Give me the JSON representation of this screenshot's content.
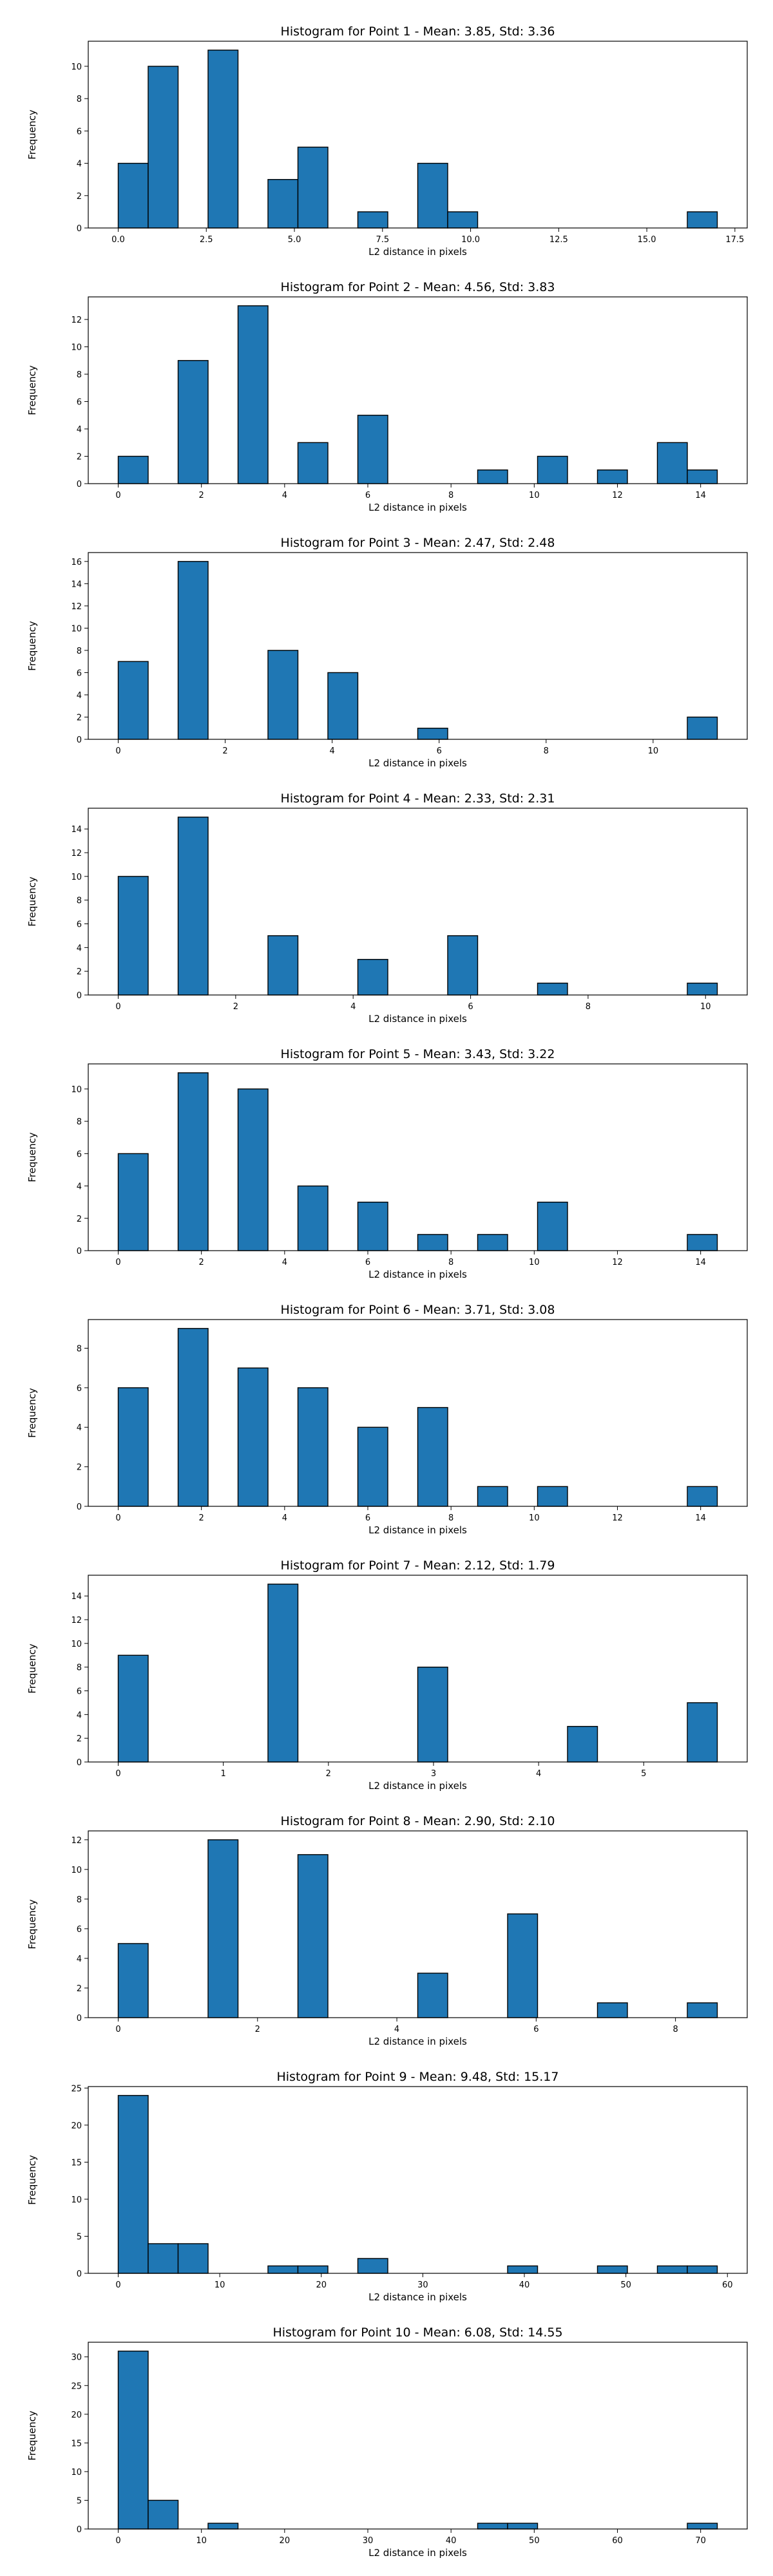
{
  "figure": {
    "bar_color": "#1f77b4",
    "edge_color": "#000000",
    "background": "#ffffff"
  },
  "chart_data": [
    {
      "type": "bar",
      "title": "Histogram for Point 1 - Mean: 3.85, Std: 3.36",
      "xlabel": "L2 distance in pixels",
      "ylabel": "Frequency",
      "xlim": [
        -0.85,
        17.85
      ],
      "ylim": [
        0,
        11.55
      ],
      "xticks": [
        0.0,
        2.5,
        5.0,
        7.5,
        10.0,
        12.5,
        15.0,
        17.5
      ],
      "xtick_labels": [
        "0.0",
        "2.5",
        "5.0",
        "7.5",
        "10.0",
        "12.5",
        "15.0",
        "17.5"
      ],
      "yticks": [
        0,
        2,
        4,
        6,
        8,
        10
      ],
      "bins": [
        {
          "x0": 0.0,
          "x1": 0.85,
          "count": 4
        },
        {
          "x0": 0.85,
          "x1": 1.7,
          "count": 10
        },
        {
          "x0": 2.55,
          "x1": 3.4,
          "count": 11
        },
        {
          "x0": 4.25,
          "x1": 5.1,
          "count": 3
        },
        {
          "x0": 5.1,
          "x1": 5.95,
          "count": 5
        },
        {
          "x0": 6.8,
          "x1": 7.65,
          "count": 1
        },
        {
          "x0": 8.5,
          "x1": 9.35,
          "count": 4
        },
        {
          "x0": 9.35,
          "x1": 10.2,
          "count": 1
        },
        {
          "x0": 16.15,
          "x1": 17.0,
          "count": 1
        }
      ]
    },
    {
      "type": "bar",
      "title": "Histogram for Point 2 - Mean: 4.56, Std: 3.83",
      "xlabel": "L2 distance in pixels",
      "ylabel": "Frequency",
      "xlim": [
        -0.72,
        15.12
      ],
      "ylim": [
        0,
        13.65
      ],
      "xticks": [
        0,
        2,
        4,
        6,
        8,
        10,
        12,
        14
      ],
      "xtick_labels": [
        "0",
        "2",
        "4",
        "6",
        "8",
        "10",
        "12",
        "14"
      ],
      "yticks": [
        0,
        2,
        4,
        6,
        8,
        10,
        12
      ],
      "bins": [
        {
          "x0": 0.0,
          "x1": 0.72,
          "count": 2
        },
        {
          "x0": 1.44,
          "x1": 2.16,
          "count": 9
        },
        {
          "x0": 2.88,
          "x1": 3.6,
          "count": 13
        },
        {
          "x0": 4.32,
          "x1": 5.04,
          "count": 3
        },
        {
          "x0": 5.76,
          "x1": 6.48,
          "count": 5
        },
        {
          "x0": 8.64,
          "x1": 9.36,
          "count": 1
        },
        {
          "x0": 10.08,
          "x1": 10.8,
          "count": 2
        },
        {
          "x0": 11.52,
          "x1": 12.24,
          "count": 1
        },
        {
          "x0": 12.96,
          "x1": 13.68,
          "count": 3
        },
        {
          "x0": 13.68,
          "x1": 14.4,
          "count": 1
        }
      ]
    },
    {
      "type": "bar",
      "title": "Histogram for Point 3 - Mean: 2.47, Std: 2.48",
      "xlabel": "L2 distance in pixels",
      "ylabel": "Frequency",
      "xlim": [
        -0.56,
        11.76
      ],
      "ylim": [
        0,
        16.8
      ],
      "xticks": [
        0,
        2,
        4,
        6,
        8,
        10
      ],
      "xtick_labels": [
        "0",
        "2",
        "4",
        "6",
        "8",
        "10"
      ],
      "yticks": [
        0,
        2,
        4,
        6,
        8,
        10,
        12,
        14,
        16
      ],
      "bins": [
        {
          "x0": 0.0,
          "x1": 0.56,
          "count": 7
        },
        {
          "x0": 1.12,
          "x1": 1.68,
          "count": 16
        },
        {
          "x0": 2.8,
          "x1": 3.36,
          "count": 8
        },
        {
          "x0": 3.92,
          "x1": 4.48,
          "count": 6
        },
        {
          "x0": 5.6,
          "x1": 6.16,
          "count": 1
        },
        {
          "x0": 10.64,
          "x1": 11.2,
          "count": 2
        }
      ]
    },
    {
      "type": "bar",
      "title": "Histogram for Point 4 - Mean: 2.33, Std: 2.31",
      "xlabel": "L2 distance in pixels",
      "ylabel": "Frequency",
      "xlim": [
        -0.51,
        10.71
      ],
      "ylim": [
        0,
        15.75
      ],
      "xticks": [
        0,
        2,
        4,
        6,
        8,
        10
      ],
      "xtick_labels": [
        "0",
        "2",
        "4",
        "6",
        "8",
        "10"
      ],
      "yticks": [
        0,
        2,
        4,
        6,
        8,
        10,
        12,
        14
      ],
      "bins": [
        {
          "x0": 0.0,
          "x1": 0.51,
          "count": 10
        },
        {
          "x0": 1.02,
          "x1": 1.53,
          "count": 15
        },
        {
          "x0": 2.55,
          "x1": 3.06,
          "count": 5
        },
        {
          "x0": 4.08,
          "x1": 4.59,
          "count": 3
        },
        {
          "x0": 5.61,
          "x1": 6.12,
          "count": 5
        },
        {
          "x0": 7.14,
          "x1": 7.65,
          "count": 1
        },
        {
          "x0": 9.69,
          "x1": 10.2,
          "count": 1
        }
      ]
    },
    {
      "type": "bar",
      "title": "Histogram for Point 5 - Mean: 3.43, Std: 3.22",
      "xlabel": "L2 distance in pixels",
      "ylabel": "Frequency",
      "xlim": [
        -0.72,
        15.12
      ],
      "ylim": [
        0,
        11.55
      ],
      "xticks": [
        0,
        2,
        4,
        6,
        8,
        10,
        12,
        14
      ],
      "xtick_labels": [
        "0",
        "2",
        "4",
        "6",
        "8",
        "10",
        "12",
        "14"
      ],
      "yticks": [
        0,
        2,
        4,
        6,
        8,
        10
      ],
      "bins": [
        {
          "x0": 0.0,
          "x1": 0.72,
          "count": 6
        },
        {
          "x0": 1.44,
          "x1": 2.16,
          "count": 11
        },
        {
          "x0": 2.88,
          "x1": 3.6,
          "count": 10
        },
        {
          "x0": 4.32,
          "x1": 5.04,
          "count": 4
        },
        {
          "x0": 5.76,
          "x1": 6.48,
          "count": 3
        },
        {
          "x0": 7.2,
          "x1": 7.92,
          "count": 1
        },
        {
          "x0": 8.64,
          "x1": 9.36,
          "count": 1
        },
        {
          "x0": 10.08,
          "x1": 10.8,
          "count": 3
        },
        {
          "x0": 13.68,
          "x1": 14.4,
          "count": 1
        }
      ]
    },
    {
      "type": "bar",
      "title": "Histogram for Point 6 - Mean: 3.71, Std: 3.08",
      "xlabel": "L2 distance in pixels",
      "ylabel": "Frequency",
      "xlim": [
        -0.72,
        15.12
      ],
      "ylim": [
        0,
        9.45
      ],
      "xticks": [
        0,
        2,
        4,
        6,
        8,
        10,
        12,
        14
      ],
      "xtick_labels": [
        "0",
        "2",
        "4",
        "6",
        "8",
        "10",
        "12",
        "14"
      ],
      "yticks": [
        0,
        2,
        4,
        6,
        8
      ],
      "bins": [
        {
          "x0": 0.0,
          "x1": 0.72,
          "count": 6
        },
        {
          "x0": 1.44,
          "x1": 2.16,
          "count": 9
        },
        {
          "x0": 2.88,
          "x1": 3.6,
          "count": 7
        },
        {
          "x0": 4.32,
          "x1": 5.04,
          "count": 6
        },
        {
          "x0": 5.76,
          "x1": 6.48,
          "count": 4
        },
        {
          "x0": 7.2,
          "x1": 7.92,
          "count": 5
        },
        {
          "x0": 8.64,
          "x1": 9.36,
          "count": 1
        },
        {
          "x0": 10.08,
          "x1": 10.8,
          "count": 1
        },
        {
          "x0": 13.68,
          "x1": 14.4,
          "count": 1
        }
      ]
    },
    {
      "type": "bar",
      "title": "Histogram for Point 7 - Mean: 2.12, Std: 1.79",
      "xlabel": "L2 distance in pixels",
      "ylabel": "Frequency",
      "xlim": [
        -0.285,
        5.985
      ],
      "ylim": [
        0,
        15.75
      ],
      "xticks": [
        0,
        1,
        2,
        3,
        4,
        5
      ],
      "xtick_labels": [
        "0",
        "1",
        "2",
        "3",
        "4",
        "5"
      ],
      "yticks": [
        0,
        2,
        4,
        6,
        8,
        10,
        12,
        14
      ],
      "bins": [
        {
          "x0": 0.0,
          "x1": 0.285,
          "count": 9
        },
        {
          "x0": 1.425,
          "x1": 1.71,
          "count": 15
        },
        {
          "x0": 2.85,
          "x1": 3.135,
          "count": 8
        },
        {
          "x0": 4.275,
          "x1": 4.56,
          "count": 3
        },
        {
          "x0": 5.415,
          "x1": 5.7,
          "count": 5
        }
      ]
    },
    {
      "type": "bar",
      "title": "Histogram for Point 8 - Mean: 2.90, Std: 2.10",
      "xlabel": "L2 distance in pixels",
      "ylabel": "Frequency",
      "xlim": [
        -0.43,
        9.03
      ],
      "ylim": [
        0,
        12.6
      ],
      "xticks": [
        0,
        2,
        4,
        6,
        8
      ],
      "xtick_labels": [
        "0",
        "2",
        "4",
        "6",
        "8"
      ],
      "yticks": [
        0,
        2,
        4,
        6,
        8,
        10,
        12
      ],
      "bins": [
        {
          "x0": 0.0,
          "x1": 0.43,
          "count": 5
        },
        {
          "x0": 1.29,
          "x1": 1.72,
          "count": 12
        },
        {
          "x0": 2.58,
          "x1": 3.01,
          "count": 11
        },
        {
          "x0": 4.3,
          "x1": 4.73,
          "count": 3
        },
        {
          "x0": 5.59,
          "x1": 6.02,
          "count": 7
        },
        {
          "x0": 6.88,
          "x1": 7.31,
          "count": 1
        },
        {
          "x0": 8.17,
          "x1": 8.6,
          "count": 1
        }
      ]
    },
    {
      "type": "bar",
      "title": "Histogram for Point 9 - Mean: 9.48, Std: 15.17",
      "xlabel": "L2 distance in pixels",
      "ylabel": "Frequency",
      "xlim": [
        -2.95,
        61.95
      ],
      "ylim": [
        0,
        25.2
      ],
      "xticks": [
        0,
        10,
        20,
        30,
        40,
        50,
        60
      ],
      "xtick_labels": [
        "0",
        "10",
        "20",
        "30",
        "40",
        "50",
        "60"
      ],
      "yticks": [
        0,
        5,
        10,
        15,
        20,
        25
      ],
      "bins": [
        {
          "x0": 0.0,
          "x1": 2.95,
          "count": 24
        },
        {
          "x0": 2.95,
          "x1": 5.9,
          "count": 4
        },
        {
          "x0": 5.9,
          "x1": 8.85,
          "count": 4
        },
        {
          "x0": 14.75,
          "x1": 17.7,
          "count": 1
        },
        {
          "x0": 17.7,
          "x1": 20.65,
          "count": 1
        },
        {
          "x0": 23.6,
          "x1": 26.55,
          "count": 2
        },
        {
          "x0": 38.35,
          "x1": 41.3,
          "count": 1
        },
        {
          "x0": 47.2,
          "x1": 50.15,
          "count": 1
        },
        {
          "x0": 53.1,
          "x1": 56.05,
          "count": 1
        },
        {
          "x0": 56.05,
          "x1": 59.0,
          "count": 1
        }
      ]
    },
    {
      "type": "bar",
      "title": "Histogram for Point 10 - Mean: 6.08, Std: 14.55",
      "xlabel": "L2 distance in pixels",
      "ylabel": "Frequency",
      "xlim": [
        -3.6,
        75.6
      ],
      "ylim": [
        0,
        32.55
      ],
      "xticks": [
        0,
        10,
        20,
        30,
        40,
        50,
        60,
        70
      ],
      "xtick_labels": [
        "0",
        "10",
        "20",
        "30",
        "40",
        "50",
        "60",
        "70"
      ],
      "yticks": [
        0,
        5,
        10,
        15,
        20,
        25,
        30
      ],
      "bins": [
        {
          "x0": 0.0,
          "x1": 3.6,
          "count": 31
        },
        {
          "x0": 3.6,
          "x1": 7.2,
          "count": 5
        },
        {
          "x0": 10.8,
          "x1": 14.4,
          "count": 1
        },
        {
          "x0": 43.2,
          "x1": 46.8,
          "count": 1
        },
        {
          "x0": 46.8,
          "x1": 50.4,
          "count": 1
        },
        {
          "x0": 68.4,
          "x1": 72.0,
          "count": 1
        }
      ]
    }
  ]
}
